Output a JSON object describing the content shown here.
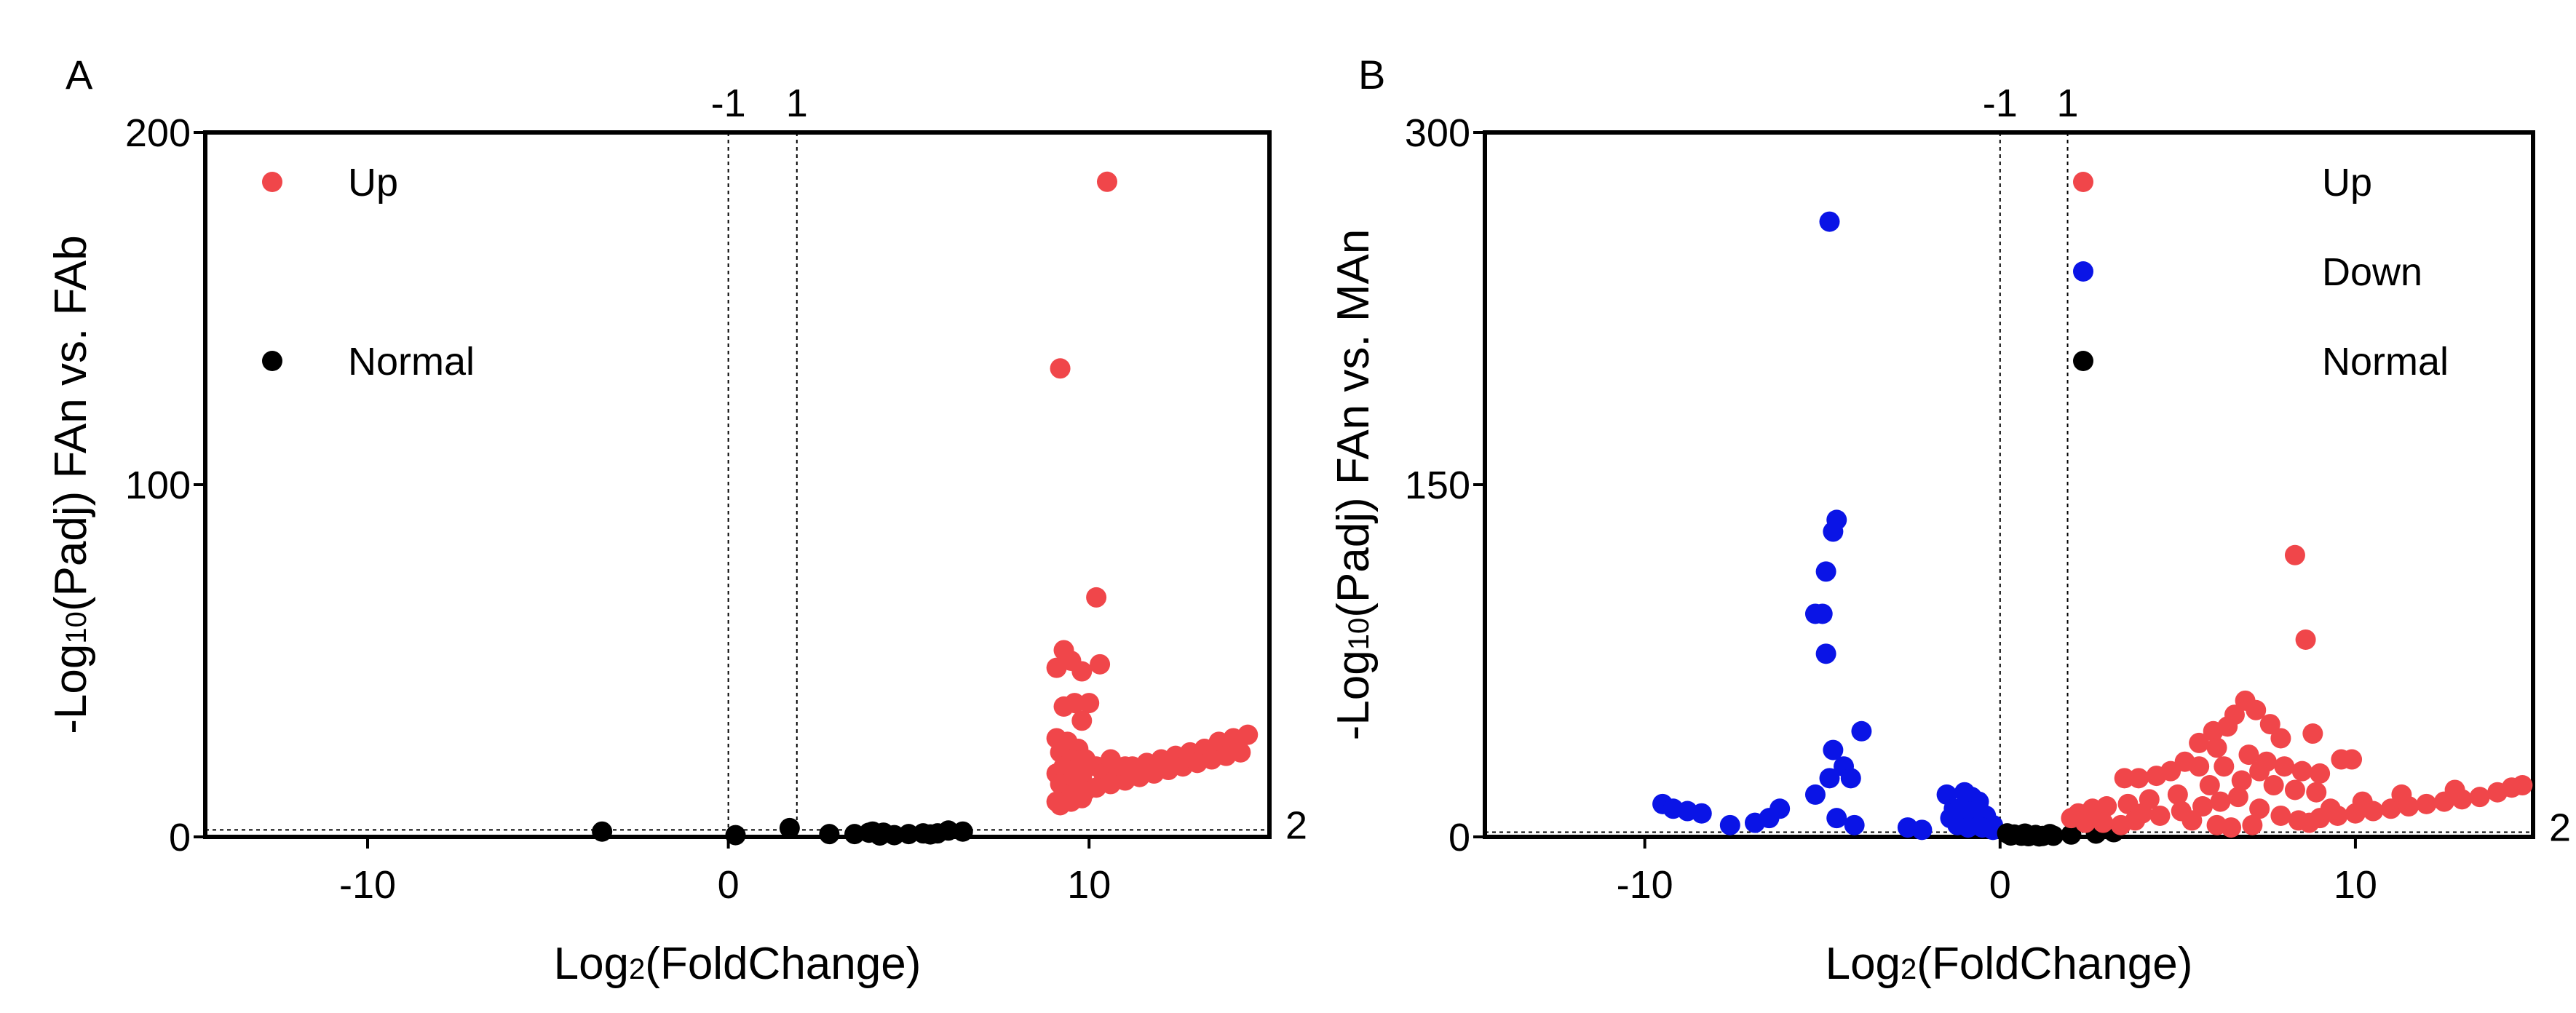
{
  "chart_data": [
    {
      "type": "scatter",
      "panel_label": "A",
      "xlabel": "Log2(FoldChange)",
      "xlabel_main": "Log",
      "xlabel_sub": "2",
      "xlabel_rest": "(FoldChange)",
      "ylabel": "-Log10(Padj) FAn vs. FAb",
      "ylabel_main": "-Log",
      "ylabel_sub": "10",
      "ylabel_rest": "(Padj) FAn vs. FAb",
      "xlim": [
        -14.5,
        15
      ],
      "ylim": [
        0,
        200
      ],
      "xticks": [
        -10,
        0,
        10
      ],
      "xtick_labels": [
        "-10",
        "0",
        "10"
      ],
      "yticks": [
        0,
        100,
        200
      ],
      "ytick_labels": [
        "0",
        "100",
        "200"
      ],
      "vlines": [
        0,
        1.9
      ],
      "vline_labels": [
        "-1",
        "1"
      ],
      "hline": 2,
      "hline_label": "2",
      "legend_position": "top-left",
      "legend": [
        {
          "label": "Up",
          "color": "#f0464a"
        },
        {
          "label": "Normal",
          "color": "#000000"
        }
      ],
      "series": [
        {
          "name": "Normal",
          "color": "#000000",
          "points": [
            [
              -3.5,
              1.5
            ],
            [
              0.2,
              0.5
            ],
            [
              1.7,
              2.5
            ],
            [
              2.8,
              0.8
            ],
            [
              3.5,
              0.8
            ],
            [
              4,
              1.5
            ],
            [
              4.3,
              1.2
            ],
            [
              4.6,
              0.5
            ],
            [
              5,
              0.8
            ],
            [
              5.4,
              1
            ],
            [
              5.8,
              1
            ],
            [
              6.1,
              1.8
            ],
            [
              6.5,
              1.5
            ],
            [
              5.6,
              0.7
            ],
            [
              4.2,
              0.4
            ],
            [
              3.9,
              1.2
            ]
          ]
        },
        {
          "name": "Up",
          "color": "#f0464a",
          "points": [
            [
              10.5,
              186
            ],
            [
              9.2,
              133
            ],
            [
              10.2,
              68
            ],
            [
              9.3,
              53
            ],
            [
              9.5,
              50
            ],
            [
              9.1,
              48
            ],
            [
              10.3,
              49
            ],
            [
              9.8,
              47
            ],
            [
              9.6,
              38
            ],
            [
              10,
              38
            ],
            [
              9.3,
              37
            ],
            [
              9.8,
              33
            ],
            [
              9.1,
              28
            ],
            [
              9.4,
              27
            ],
            [
              9.7,
              25
            ],
            [
              9.2,
              24
            ],
            [
              9.5,
              22
            ],
            [
              9.9,
              22
            ],
            [
              10.2,
              20
            ],
            [
              9.3,
              20
            ],
            [
              9.6,
              19
            ],
            [
              9.1,
              18
            ],
            [
              9.4,
              17
            ],
            [
              9.8,
              17
            ],
            [
              9.2,
              15
            ],
            [
              9.6,
              14
            ],
            [
              9.3,
              12
            ],
            [
              9.9,
              13
            ],
            [
              9.1,
              10
            ],
            [
              9.5,
              10
            ],
            [
              9.2,
              9
            ],
            [
              9.8,
              11
            ],
            [
              10.4,
              18
            ],
            [
              10.8,
              19
            ],
            [
              11.2,
              20
            ],
            [
              11.6,
              21
            ],
            [
              12,
              22
            ],
            [
              12.4,
              23
            ],
            [
              12.8,
              24
            ],
            [
              13.2,
              25
            ],
            [
              13.6,
              27
            ],
            [
              14,
              28
            ],
            [
              14.4,
              29
            ],
            [
              10.2,
              14
            ],
            [
              10.6,
              15
            ],
            [
              11,
              16
            ],
            [
              11.4,
              17
            ],
            [
              11.8,
              18
            ],
            [
              12.2,
              19
            ],
            [
              12.6,
              20
            ],
            [
              13,
              21
            ],
            [
              13.4,
              22
            ],
            [
              13.8,
              23
            ],
            [
              14.2,
              24
            ],
            [
              10.6,
              22
            ],
            [
              11,
              20
            ]
          ]
        }
      ]
    },
    {
      "type": "scatter",
      "panel_label": "B",
      "xlabel": "Log2(FoldChange)",
      "xlabel_main": "Log",
      "xlabel_sub": "2",
      "xlabel_rest": "(FoldChange)",
      "ylabel": "-Log10(Padj) FAn vs. MAn",
      "ylabel_main": "-Log",
      "ylabel_sub": "10",
      "ylabel_rest": "(Padj) FAn vs. MAn",
      "xlim": [
        -14.5,
        15
      ],
      "ylim": [
        0,
        300
      ],
      "xticks": [
        -10,
        0,
        10
      ],
      "xtick_labels": [
        "-10",
        "0",
        "10"
      ],
      "yticks": [
        0,
        150,
        300
      ],
      "ytick_labels": [
        "0",
        "150",
        "300"
      ],
      "vlines": [
        0,
        1.9
      ],
      "vline_labels": [
        "-1",
        "1"
      ],
      "hline": 2,
      "hline_label": "2",
      "legend_position": "top-right",
      "legend": [
        {
          "label": "Up",
          "color": "#f0464a"
        },
        {
          "label": "Down",
          "color": "#0a14e6"
        },
        {
          "label": "Normal",
          "color": "#000000"
        }
      ],
      "series": [
        {
          "name": "Down",
          "color": "#0a14e6",
          "points": [
            [
              -4.8,
              262
            ],
            [
              -4.6,
              135
            ],
            [
              -4.7,
              130
            ],
            [
              -4.9,
              113
            ],
            [
              -5.2,
              95
            ],
            [
              -5,
              95
            ],
            [
              -4.9,
              78
            ],
            [
              -3.9,
              45
            ],
            [
              -4.7,
              37
            ],
            [
              -4.4,
              30
            ],
            [
              -4.8,
              25
            ],
            [
              -4.2,
              25
            ],
            [
              -5.2,
              18
            ],
            [
              -4.6,
              8
            ],
            [
              -4.1,
              5
            ],
            [
              -9.5,
              14
            ],
            [
              -9.2,
              12
            ],
            [
              -8.8,
              11
            ],
            [
              -8.4,
              10
            ],
            [
              -7.6,
              5
            ],
            [
              -6.9,
              6
            ],
            [
              -6.5,
              8
            ],
            [
              -6.2,
              12
            ],
            [
              -2.6,
              4
            ],
            [
              -2.2,
              3
            ],
            [
              -1.5,
              18
            ],
            [
              -1,
              19
            ],
            [
              -0.8,
              17
            ],
            [
              -0.6,
              15
            ],
            [
              -1.3,
              12
            ],
            [
              -1,
              11
            ],
            [
              -0.7,
              10
            ],
            [
              -0.4,
              9
            ],
            [
              -1.4,
              8
            ],
            [
              -1.1,
              7
            ],
            [
              -0.8,
              7
            ],
            [
              -0.4,
              6
            ],
            [
              -0.2,
              5
            ],
            [
              -1.2,
              5
            ],
            [
              -0.9,
              4
            ],
            [
              -0.5,
              4
            ],
            [
              -0.2,
              3
            ],
            [
              -1.3,
              10
            ],
            [
              -0.6,
              12
            ]
          ]
        },
        {
          "name": "Normal",
          "color": "#000000",
          "points": [
            [
              0.2,
              1.5
            ],
            [
              0.4,
              1
            ],
            [
              0.6,
              0.5
            ],
            [
              0.8,
              0.3
            ],
            [
              1,
              0.8
            ],
            [
              1.2,
              0.4
            ],
            [
              1.4,
              1.2
            ],
            [
              0.3,
              0.6
            ],
            [
              0.7,
              1.4
            ],
            [
              1.1,
              0.2
            ],
            [
              1.5,
              0.5
            ],
            [
              3.2,
              2
            ],
            [
              2.7,
              1.4
            ],
            [
              2,
              1
            ]
          ]
        },
        {
          "name": "Up",
          "color": "#f0464a",
          "points": [
            [
              8.3,
              120
            ],
            [
              8.6,
              84
            ],
            [
              6.9,
              58
            ],
            [
              6.6,
              52
            ],
            [
              7.2,
              54
            ],
            [
              7.6,
              48
            ],
            [
              8.8,
              44
            ],
            [
              7.9,
              42
            ],
            [
              6,
              45
            ],
            [
              6.4,
              47
            ],
            [
              5.6,
              40
            ],
            [
              6.1,
              38
            ],
            [
              7,
              35
            ],
            [
              7.5,
              32
            ],
            [
              8,
              30
            ],
            [
              8.5,
              28
            ],
            [
              9,
              27
            ],
            [
              9.6,
              33
            ],
            [
              9.9,
              33
            ],
            [
              5.2,
              32
            ],
            [
              5.6,
              30
            ],
            [
              6.3,
              30
            ],
            [
              7.3,
              28
            ],
            [
              4.8,
              28
            ],
            [
              4.4,
              26
            ],
            [
              3.9,
              25
            ],
            [
              3.5,
              25
            ],
            [
              6.8,
              24
            ],
            [
              7.7,
              22
            ],
            [
              8.3,
              20
            ],
            [
              8.9,
              19
            ],
            [
              5.9,
              22
            ],
            [
              5,
              18
            ],
            [
              4.2,
              16
            ],
            [
              3.6,
              14
            ],
            [
              3,
              13
            ],
            [
              2.6,
              12
            ],
            [
              2.2,
              10
            ],
            [
              2,
              8
            ],
            [
              2.9,
              6
            ],
            [
              3.4,
              5
            ],
            [
              3.8,
              7
            ],
            [
              4.5,
              9
            ],
            [
              5.1,
              11
            ],
            [
              5.7,
              13
            ],
            [
              6.2,
              15
            ],
            [
              6.7,
              17
            ],
            [
              7.3,
              12
            ],
            [
              7.9,
              9
            ],
            [
              8.4,
              7
            ],
            [
              9,
              8
            ],
            [
              9.5,
              9
            ],
            [
              10,
              10
            ],
            [
              10.5,
              11
            ],
            [
              11,
              12
            ],
            [
              11.5,
              13
            ],
            [
              12,
              14
            ],
            [
              12.5,
              15
            ],
            [
              13,
              16
            ],
            [
              13.5,
              17
            ],
            [
              14,
              19
            ],
            [
              14.4,
              21
            ],
            [
              14.7,
              22
            ],
            [
              6.5,
              4
            ],
            [
              7.1,
              5
            ],
            [
              8.7,
              6
            ],
            [
              9.3,
              12
            ],
            [
              10.2,
              15
            ],
            [
              11.3,
              18
            ],
            [
              12.8,
              20
            ],
            [
              4,
              10
            ],
            [
              5.4,
              7
            ],
            [
              6.1,
              5
            ],
            [
              2.4,
              6
            ]
          ]
        }
      ]
    }
  ]
}
